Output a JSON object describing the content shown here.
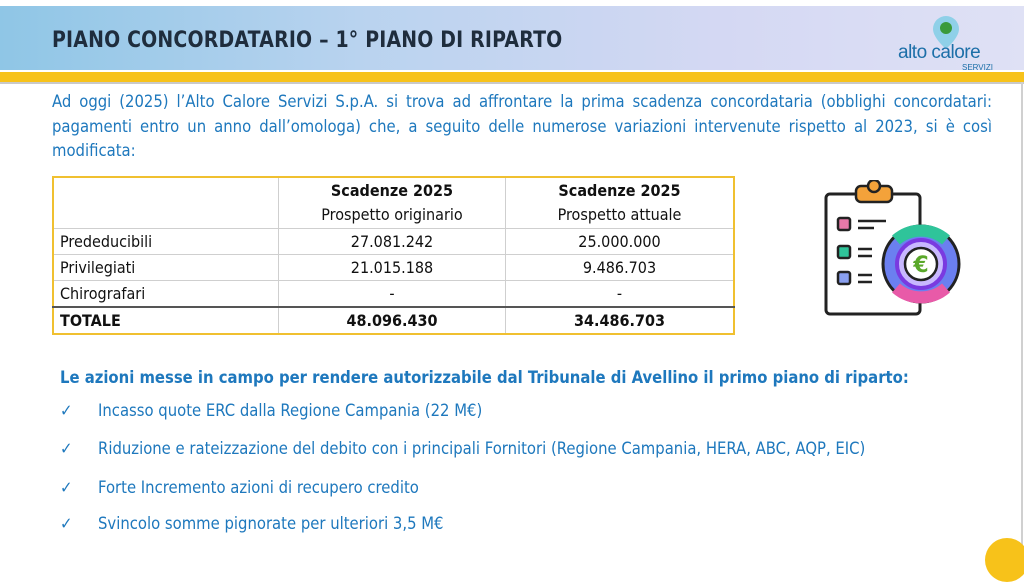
{
  "header": {
    "title": "PIANO CONCORDATARIO – 1° PIANO DI RIPARTO",
    "logo_text": "alto calore",
    "logo_sub": "SERVIZI"
  },
  "intro": "Ad oggi (2025) l’Alto Calore Servizi S.p.A. si trova ad affrontare la prima scadenza concordataria (obblighi concordatari: pagamenti entro un anno dall’omologa) che, a seguito delle numerose variazioni intervenute rispetto al 2023, si è così modificata:",
  "table": {
    "columns": [
      {
        "title": "Scadenze 2025",
        "subtitle": "Prospetto originario"
      },
      {
        "title": "Scadenze 2025",
        "subtitle": "Prospetto attuale"
      }
    ],
    "rows": [
      {
        "label": "Prededucibili",
        "original": "27.081.242",
        "current": "25.000.000"
      },
      {
        "label": "Privilegiati",
        "original": "21.015.188",
        "current": "9.486.703"
      },
      {
        "label": "Chirografari",
        "original": "-",
        "current": "-"
      },
      {
        "label": "TOTALE",
        "original": "48.096.430",
        "current": "34.486.703"
      }
    ]
  },
  "actions": {
    "title": "Le azioni messe in campo per rendere autorizzabile dal Tribunale di Avellino il primo piano di riparto:",
    "check": "✓",
    "items": [
      "Incasso quote ERC dalla Regione Campania (22 M€)",
      "Riduzione e rateizzazione del debito con i principali Fornitori (Regione Campania, HERA, ABC, AQP, EIC)",
      "Forte Incremento azioni di recupero credito",
      "Svincolo somme pignorate per ulteriori 3,5 M€"
    ]
  },
  "colors": {
    "accent_blue": "#1e78bd",
    "gold": "#f7c21a"
  }
}
